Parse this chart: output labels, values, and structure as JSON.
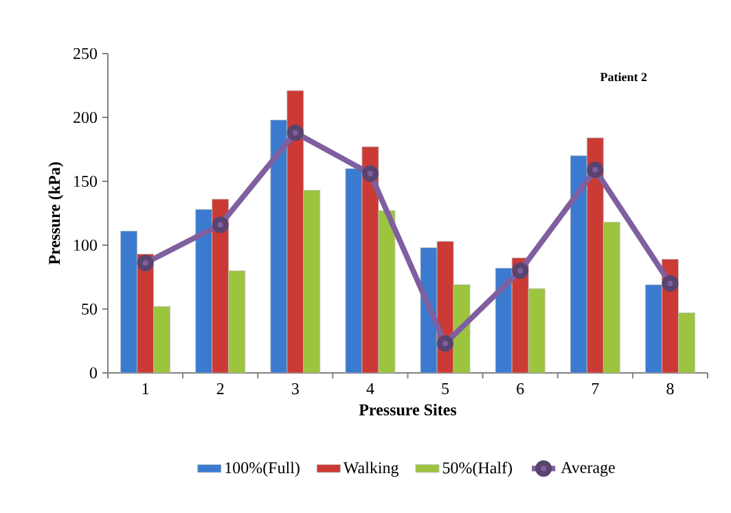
{
  "chart_data": {
    "type": "bar",
    "title": "Patient  2",
    "xlabel": "Pressure Sites",
    "ylabel": "Pressure (kPa)",
    "categories": [
      "1",
      "2",
      "3",
      "4",
      "5",
      "6",
      "7",
      "8"
    ],
    "series": [
      {
        "name": "100%(Full)",
        "color": "#3a7bd0",
        "values": [
          111,
          128,
          198,
          160,
          98,
          82,
          170,
          69
        ]
      },
      {
        "name": "Walking",
        "color": "#cc3a36",
        "values": [
          93,
          136,
          221,
          177,
          103,
          90,
          184,
          89
        ]
      },
      {
        "name": "50%(Half)",
        "color": "#9dc43e",
        "values": [
          52,
          80,
          143,
          127,
          69,
          66,
          118,
          47
        ]
      },
      {
        "name": "Average",
        "type": "line",
        "color": "#7f5f9f",
        "marker": "circle",
        "values": [
          86,
          116,
          188,
          156,
          23,
          80,
          159,
          70
        ]
      }
    ],
    "ylim": [
      0,
      250
    ],
    "yticks": [
      0,
      50,
      100,
      150,
      200,
      250
    ],
    "grid": false,
    "legend": "bottom"
  }
}
